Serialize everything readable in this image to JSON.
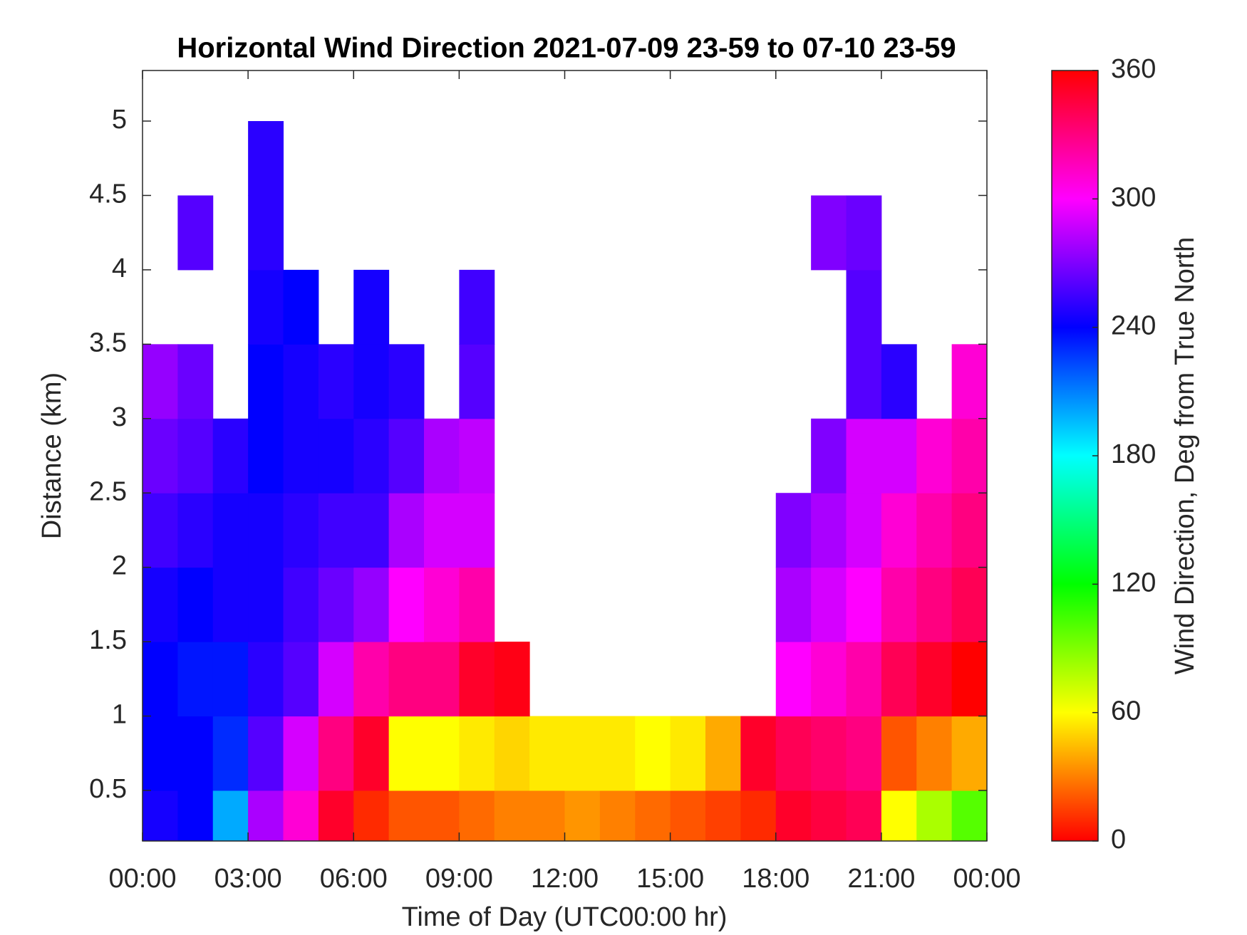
{
  "chart_data": {
    "type": "heatmap",
    "title": "Horizontal Wind Direction 2021-07-09 23-59 to 07-10 23-59",
    "x_label": "Time of Day (UTC00:00 hr)",
    "y_label": "Distance (km)",
    "colorbar_label": "Wind Direction, Deg from True North",
    "colormap": "hsv",
    "x_edges": [
      0,
      1,
      2,
      3,
      4,
      5,
      6,
      7,
      8,
      9,
      10,
      11,
      12,
      13,
      14,
      15,
      16,
      17,
      18,
      19,
      20,
      21,
      22,
      23,
      24
    ],
    "y_edges": [
      0.16,
      0.5,
      1,
      1.5,
      2,
      2.5,
      3,
      3.5,
      4,
      4.5,
      5,
      5.34
    ],
    "values": [
      [
        245,
        240,
        200,
        280,
        310,
        350,
        10,
        20,
        20,
        25,
        30,
        30,
        35,
        30,
        25,
        20,
        15,
        10,
        350,
        345,
        340,
        60,
        80,
        100
      ],
      [
        240,
        240,
        230,
        260,
        290,
        330,
        350,
        60,
        60,
        55,
        50,
        55,
        55,
        55,
        60,
        55,
        40,
        350,
        340,
        335,
        330,
        20,
        30,
        40
      ],
      [
        240,
        235,
        235,
        250,
        260,
        290,
        320,
        330,
        330,
        350,
        355,
        null,
        null,
        null,
        null,
        null,
        null,
        null,
        300,
        310,
        320,
        340,
        350,
        0
      ],
      [
        245,
        240,
        245,
        245,
        255,
        265,
        275,
        300,
        310,
        320,
        null,
        null,
        null,
        null,
        null,
        null,
        null,
        null,
        280,
        290,
        300,
        320,
        330,
        340
      ],
      [
        255,
        250,
        245,
        245,
        250,
        255,
        255,
        280,
        290,
        290,
        null,
        null,
        null,
        null,
        null,
        null,
        null,
        null,
        270,
        280,
        290,
        310,
        320,
        330
      ],
      [
        265,
        260,
        250,
        240,
        245,
        245,
        250,
        260,
        280,
        285,
        null,
        null,
        null,
        null,
        null,
        null,
        null,
        null,
        null,
        270,
        290,
        290,
        310,
        320
      ],
      [
        275,
        265,
        null,
        240,
        245,
        250,
        245,
        250,
        null,
        260,
        null,
        null,
        null,
        null,
        null,
        null,
        null,
        null,
        null,
        null,
        260,
        250,
        null,
        310
      ],
      [
        null,
        null,
        null,
        245,
        240,
        null,
        245,
        null,
        null,
        255,
        null,
        null,
        null,
        null,
        null,
        null,
        null,
        null,
        null,
        null,
        260,
        null,
        null,
        null
      ],
      [
        null,
        260,
        null,
        250,
        null,
        null,
        null,
        null,
        null,
        null,
        null,
        null,
        null,
        null,
        null,
        null,
        null,
        null,
        null,
        270,
        265,
        null,
        null,
        null
      ],
      [
        null,
        null,
        null,
        250,
        null,
        null,
        null,
        null,
        null,
        null,
        null,
        null,
        null,
        null,
        null,
        null,
        null,
        null,
        null,
        null,
        null,
        null,
        null,
        null
      ],
      [
        null,
        null,
        null,
        null,
        null,
        null,
        null,
        null,
        null,
        null,
        null,
        null,
        null,
        null,
        null,
        null,
        null,
        null,
        null,
        null,
        null,
        null,
        null,
        null
      ]
    ],
    "xlim": [
      0,
      24
    ],
    "xticks": [
      {
        "value": 0,
        "label": "00:00"
      },
      {
        "value": 3,
        "label": "03:00"
      },
      {
        "value": 6,
        "label": "06:00"
      },
      {
        "value": 9,
        "label": "09:00"
      },
      {
        "value": 12,
        "label": "12:00"
      },
      {
        "value": 15,
        "label": "15:00"
      },
      {
        "value": 18,
        "label": "18:00"
      },
      {
        "value": 21,
        "label": "21:00"
      },
      {
        "value": 24,
        "label": "00:00"
      }
    ],
    "ylim": [
      0.16,
      5.34
    ],
    "yticks": [
      0.5,
      1,
      1.5,
      2,
      2.5,
      3,
      3.5,
      4,
      4.5,
      5
    ],
    "clim": [
      0,
      360
    ],
    "cticks": [
      0,
      60,
      120,
      180,
      240,
      300,
      360
    ]
  }
}
